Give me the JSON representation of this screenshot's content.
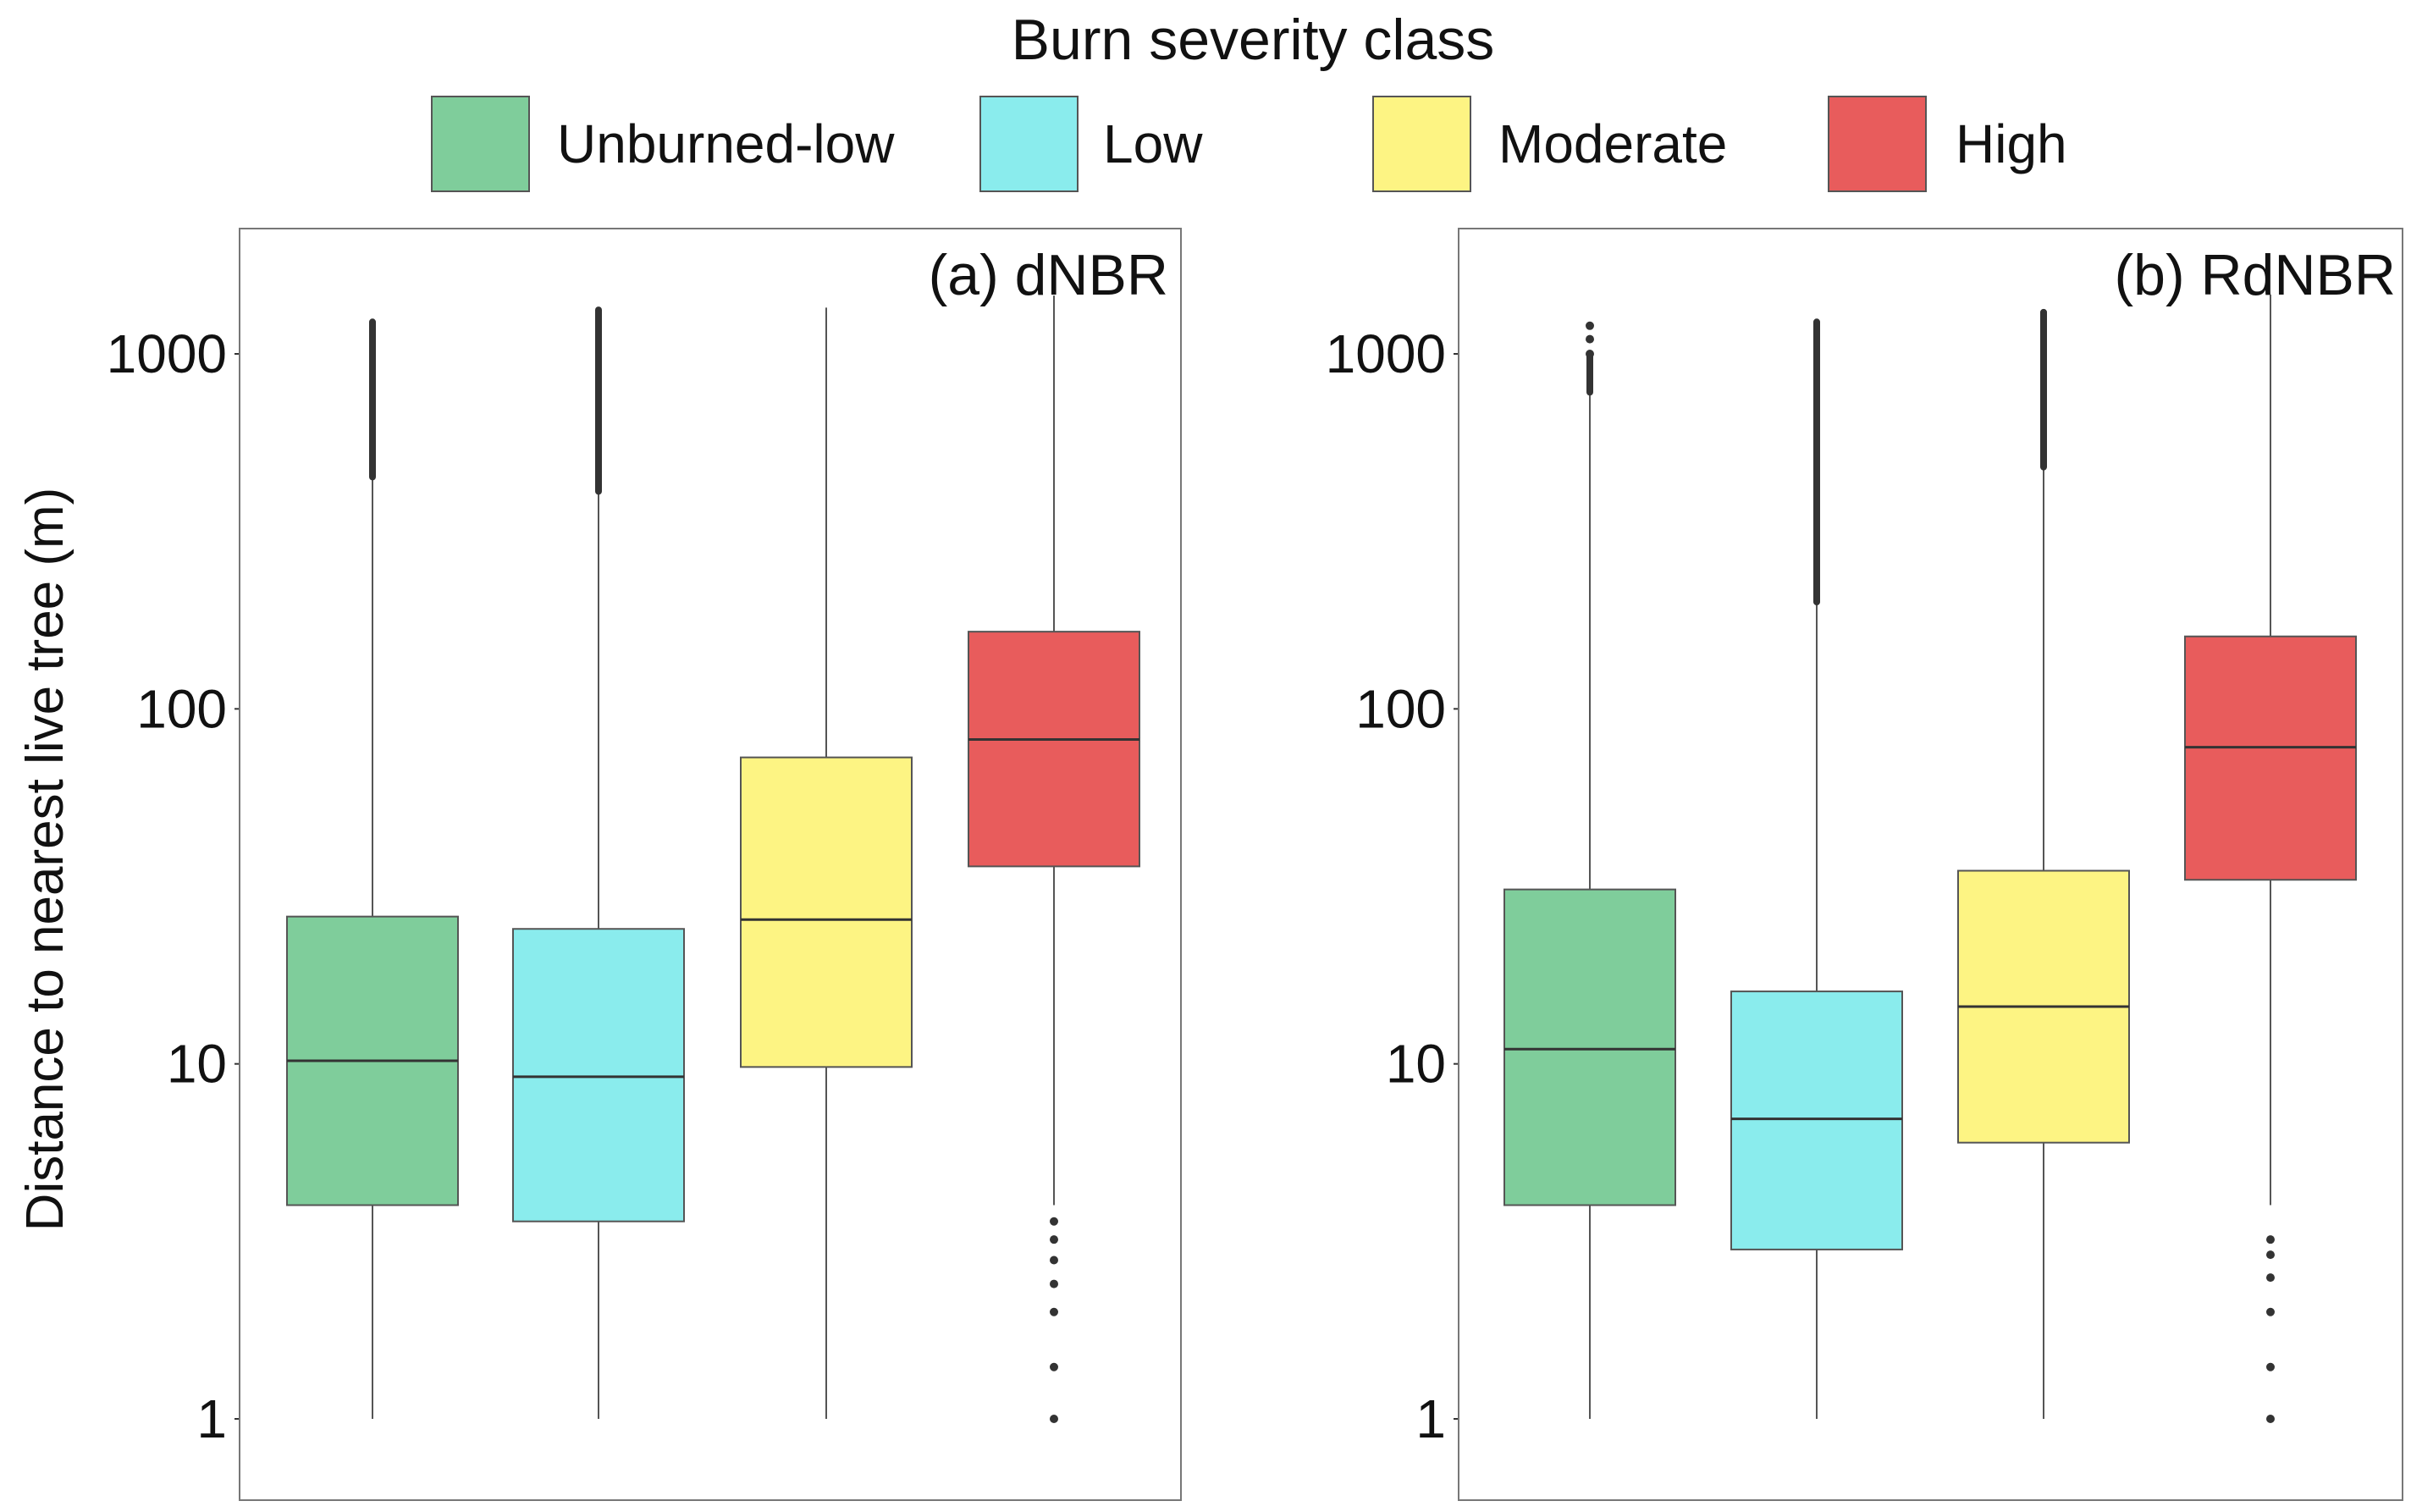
{
  "chart_data": {
    "type": "boxplot",
    "legend": {
      "title": "Burn severity class",
      "position": "top",
      "entries": [
        {
          "label": "Unburned-low",
          "color": "#7fcd9b"
        },
        {
          "label": "Low",
          "color": "#8aeced"
        },
        {
          "label": "Moderate",
          "color": "#fdf483"
        },
        {
          "label": "High",
          "color": "#e85c5c"
        }
      ]
    },
    "ylabel": "Distance to nearest live tree (m)",
    "yscale": "log10",
    "ylim": [
      0.6,
      2600
    ],
    "yticks": [
      1,
      10,
      100,
      1000
    ],
    "ytick_labels": [
      "1",
      "10",
      "100",
      "1000"
    ],
    "panels": [
      {
        "title": "(a) dNBR",
        "boxes": [
          {
            "category": "Unburned-low",
            "whisker_low": 1,
            "q1": 4,
            "median": 10.2,
            "q3": 26,
            "whisker_high": 450,
            "outlier_range": [
              450,
              1230
            ],
            "outliers_low": []
          },
          {
            "category": "Low",
            "whisker_low": 1,
            "q1": 3.6,
            "median": 9.2,
            "q3": 24,
            "whisker_high": 410,
            "outlier_range": [
              410,
              1330
            ],
            "outliers_low": []
          },
          {
            "category": "Moderate",
            "whisker_low": 1,
            "q1": 9.8,
            "median": 25.5,
            "q3": 73,
            "whisker_high": 1350,
            "outlier_range": null,
            "outliers_low": []
          },
          {
            "category": "High",
            "whisker_low": 4,
            "q1": 36,
            "median": 82,
            "q3": 165,
            "whisker_high": 1460,
            "outlier_range": null,
            "outliers_low": [
              3.6,
              3.2,
              2.8,
              2.4,
              2.0,
              1.4,
              1.0
            ]
          }
        ]
      },
      {
        "title": "(b) RdNBR",
        "boxes": [
          {
            "category": "Unburned-low",
            "whisker_low": 1,
            "q1": 4,
            "median": 11,
            "q3": 31,
            "whisker_high": 780,
            "outlier_range": [
              780,
              1000
            ],
            "outliers_low": [],
            "outliers_high_points": [
              1000,
              1100,
              1200
            ]
          },
          {
            "category": "Low",
            "whisker_low": 1,
            "q1": 3,
            "median": 7,
            "q3": 16,
            "whisker_high": 200,
            "outlier_range": [
              200,
              1230
            ],
            "outliers_low": []
          },
          {
            "category": "Moderate",
            "whisker_low": 1,
            "q1": 6,
            "median": 14.5,
            "q3": 35,
            "whisker_high": 480,
            "outlier_range": [
              480,
              1310
            ],
            "outliers_low": []
          },
          {
            "category": "High",
            "whisker_low": 4,
            "q1": 33,
            "median": 78,
            "q3": 160,
            "whisker_high": 1470,
            "outlier_range": null,
            "outliers_low": [
              3.2,
              2.9,
              2.5,
              2.0,
              1.4,
              1.0
            ]
          }
        ]
      }
    ]
  }
}
